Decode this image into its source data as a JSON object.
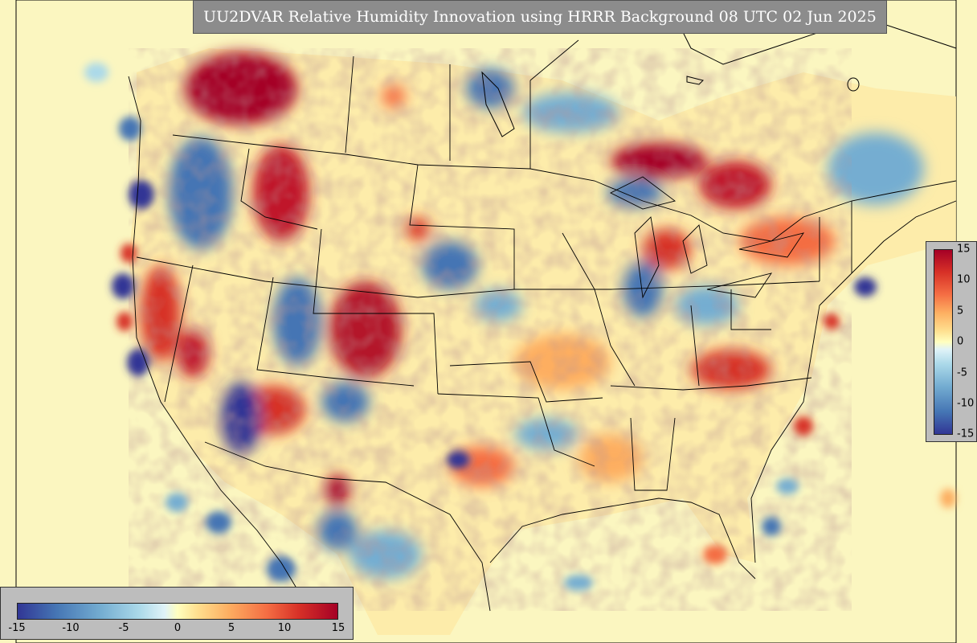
{
  "title": "UU2DVAR Relative Humidity Innovation using HRRR Background 08 UTC 02 Jun 2025",
  "colorbar": {
    "horizontal_ticks": [
      "-15",
      "-10",
      "-5",
      "0",
      "5",
      "10",
      "15"
    ],
    "vertical_ticks": [
      "15",
      "10",
      "5",
      "0",
      "-5",
      "-10",
      "-15"
    ],
    "min": -15,
    "max": 15
  },
  "colors": {
    "strong_negative": "#313695",
    "negative": "#4575b4",
    "weak_negative": "#abd9e9",
    "neutral": "#ffffbf",
    "weak_positive": "#fee090",
    "positive": "#f46d43",
    "strong_positive": "#a50026",
    "ocean_background": "#fbf6c0",
    "panel_gray": "#bdbdbd",
    "title_background": "#8c8c8c"
  }
}
